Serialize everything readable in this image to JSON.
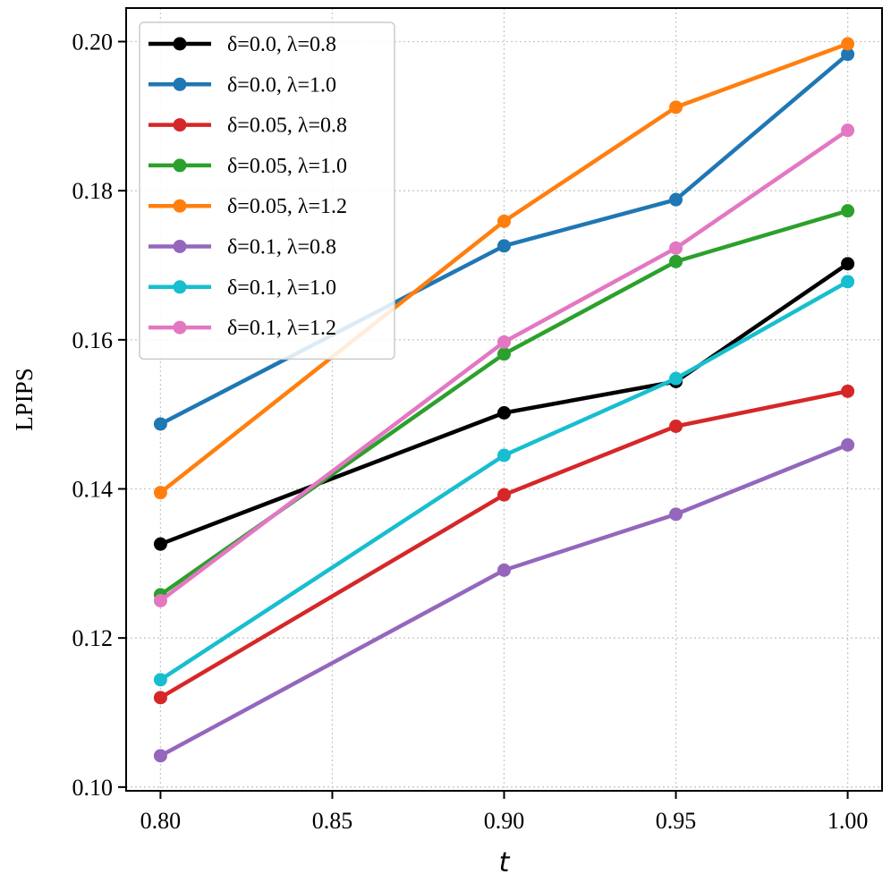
{
  "chart_data": {
    "type": "line",
    "title": "",
    "xlabel": "t",
    "ylabel": "LPIPS",
    "x": [
      0.8,
      0.9,
      0.95,
      1.0
    ],
    "xlim": [
      0.79,
      1.01
    ],
    "ylim": [
      0.0995,
      0.2045
    ],
    "xticks": [
      0.8,
      0.85,
      0.9,
      0.95,
      1.0
    ],
    "xtick_labels": [
      "0.80",
      "0.85",
      "0.90",
      "0.95",
      "1.00"
    ],
    "yticks": [
      0.1,
      0.12,
      0.14,
      0.16,
      0.18,
      0.2
    ],
    "ytick_labels": [
      "0.10",
      "0.12",
      "0.14",
      "0.16",
      "0.18",
      "0.20"
    ],
    "grid": true,
    "legend_position": "top-left",
    "series": [
      {
        "name": "δ=0.0, λ=0.8",
        "color": "#000000",
        "values": [
          0.1326,
          0.1502,
          0.1544,
          0.1702
        ]
      },
      {
        "name": "δ=0.0, λ=1.0",
        "color": "#1f77b4",
        "values": [
          0.1487,
          0.1726,
          0.1788,
          0.1983
        ]
      },
      {
        "name": "δ=0.05, λ=0.8",
        "color": "#d62728",
        "values": [
          0.112,
          0.1392,
          0.1484,
          0.1531
        ]
      },
      {
        "name": "δ=0.05, λ=1.0",
        "color": "#2ca02c",
        "values": [
          0.1258,
          0.1581,
          0.1705,
          0.1773
        ]
      },
      {
        "name": "δ=0.05, λ=1.2",
        "color": "#ff7f0e",
        "values": [
          0.1395,
          0.1759,
          0.1912,
          0.1997
        ]
      },
      {
        "name": "δ=0.1, λ=0.8",
        "color": "#9467bd",
        "values": [
          0.1042,
          0.1291,
          0.1366,
          0.1459
        ]
      },
      {
        "name": "δ=0.1, λ=1.0",
        "color": "#17becf",
        "values": [
          0.1144,
          0.1445,
          0.1548,
          0.1678
        ]
      },
      {
        "name": "δ=0.1, λ=1.2",
        "color": "#e377c2",
        "values": [
          0.125,
          0.1597,
          0.1723,
          0.1881
        ]
      }
    ]
  }
}
